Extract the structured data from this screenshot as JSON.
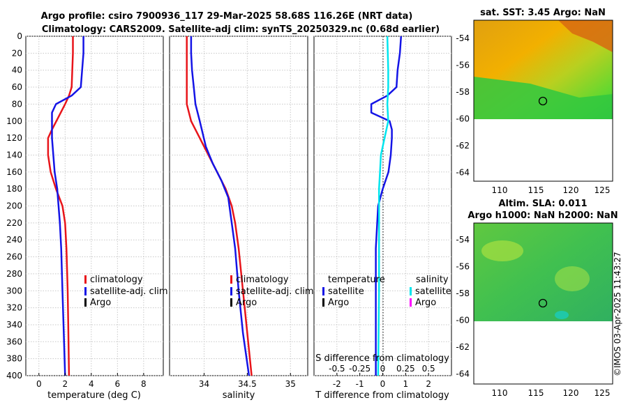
{
  "header": {
    "title_line1": "Argo profile: csiro 7900936_117 29-Mar-2025 58.68S 116.26E (NRT data)",
    "title_line2": "Climatology: CARS2009. Satellite-adj clim: synTS_20250329.nc (0.68d earlier)"
  },
  "colors": {
    "climatology": "#e8141a",
    "satellite": "#1414e6",
    "argo": "#000000",
    "sat_salinity": "#00e5ee",
    "argo_salinity": "#ff00ff"
  },
  "chart_data": [
    {
      "id": "temperature",
      "type": "line",
      "xlabel": "temperature (deg C)",
      "ylabel": "",
      "xlim": [
        -1,
        9.5
      ],
      "ylim": [
        400,
        0
      ],
      "xticks": [
        0,
        2,
        4,
        6,
        8
      ],
      "yticks": [
        0,
        20,
        40,
        60,
        80,
        100,
        120,
        140,
        160,
        180,
        200,
        220,
        240,
        260,
        280,
        300,
        320,
        340,
        360,
        380,
        400
      ],
      "series": [
        {
          "name": "climatology",
          "points": [
            [
              2.6,
              0
            ],
            [
              2.6,
              20
            ],
            [
              2.55,
              40
            ],
            [
              2.5,
              60
            ],
            [
              2.3,
              70
            ],
            [
              2.0,
              80
            ],
            [
              1.5,
              95
            ],
            [
              1.0,
              110
            ],
            [
              0.7,
              120
            ],
            [
              0.7,
              140
            ],
            [
              0.9,
              160
            ],
            [
              1.3,
              180
            ],
            [
              1.8,
              200
            ],
            [
              2.0,
              220
            ],
            [
              2.1,
              250
            ],
            [
              2.2,
              300
            ],
            [
              2.25,
              350
            ],
            [
              2.3,
              400
            ]
          ]
        },
        {
          "name": "satellite-adj. clim",
          "points": [
            [
              3.4,
              0
            ],
            [
              3.4,
              20
            ],
            [
              3.3,
              40
            ],
            [
              3.2,
              60
            ],
            [
              2.5,
              70
            ],
            [
              1.3,
              80
            ],
            [
              1.0,
              90
            ],
            [
              1.0,
              120
            ],
            [
              1.1,
              140
            ],
            [
              1.2,
              160
            ],
            [
              1.4,
              180
            ],
            [
              1.5,
              200
            ],
            [
              1.6,
              220
            ],
            [
              1.7,
              250
            ],
            [
              1.8,
              300
            ],
            [
              1.9,
              350
            ],
            [
              2.0,
              400
            ]
          ]
        }
      ],
      "legend": [
        "climatology",
        "satellite-adj. clim",
        "Argo"
      ]
    },
    {
      "id": "salinity",
      "type": "line",
      "xlabel": "salinity",
      "ylabel": "",
      "xlim": [
        33.6,
        35.2
      ],
      "ylim": [
        400,
        0
      ],
      "xticks": [
        34,
        34.5,
        35
      ],
      "xticklabels": [
        "34",
        "34.5",
        "35"
      ],
      "series": [
        {
          "name": "climatology",
          "points": [
            [
              33.8,
              0
            ],
            [
              33.8,
              20
            ],
            [
              33.8,
              40
            ],
            [
              33.8,
              60
            ],
            [
              33.8,
              80
            ],
            [
              33.85,
              100
            ],
            [
              33.95,
              120
            ],
            [
              34.05,
              140
            ],
            [
              34.15,
              160
            ],
            [
              34.25,
              180
            ],
            [
              34.32,
              200
            ],
            [
              34.36,
              220
            ],
            [
              34.4,
              250
            ],
            [
              34.45,
              300
            ],
            [
              34.5,
              350
            ],
            [
              34.55,
              400
            ]
          ]
        },
        {
          "name": "satellite-adj. clim",
          "points": [
            [
              33.85,
              0
            ],
            [
              33.85,
              20
            ],
            [
              33.86,
              40
            ],
            [
              33.88,
              60
            ],
            [
              33.9,
              80
            ],
            [
              33.95,
              100
            ],
            [
              34.02,
              130
            ],
            [
              34.1,
              150
            ],
            [
              34.2,
              170
            ],
            [
              34.28,
              190
            ],
            [
              34.32,
              220
            ],
            [
              34.36,
              250
            ],
            [
              34.4,
              300
            ],
            [
              34.45,
              350
            ],
            [
              34.52,
              400
            ]
          ]
        }
      ],
      "legend": [
        "climatology",
        "satellite-adj. clim",
        "Argo"
      ]
    },
    {
      "id": "difference",
      "type": "line",
      "xlabel": "T difference from climatology",
      "top_label": "S difference from climatology",
      "ylabel": "",
      "xlim": [
        -3,
        3
      ],
      "ylim": [
        400,
        0
      ],
      "xticks": [
        -2,
        -1,
        0,
        1,
        2
      ],
      "xticklabels": [
        "-2",
        "-1",
        "0",
        "1",
        "2"
      ],
      "sticks": [
        -0.5,
        -0.25,
        0,
        0.25,
        0.5
      ],
      "sticklabels": [
        "-0.5",
        "-0.25",
        "0",
        "0.25",
        "0.5"
      ],
      "series": [
        {
          "name": "temperature satellite",
          "points": [
            [
              0.8,
              0
            ],
            [
              0.75,
              20
            ],
            [
              0.65,
              40
            ],
            [
              0.6,
              60
            ],
            [
              0.2,
              70
            ],
            [
              -0.5,
              80
            ],
            [
              -0.5,
              90
            ],
            [
              0.3,
              100
            ],
            [
              0.4,
              110
            ],
            [
              0.4,
              120
            ],
            [
              0.35,
              140
            ],
            [
              0.25,
              160
            ],
            [
              0.0,
              180
            ],
            [
              -0.2,
              200
            ],
            [
              -0.3,
              250
            ],
            [
              -0.3,
              300
            ],
            [
              -0.3,
              350
            ],
            [
              -0.3,
              400
            ]
          ]
        },
        {
          "name": "salinity satellite",
          "points": [
            [
              0.05,
              0
            ],
            [
              0.06,
              40
            ],
            [
              0.06,
              60
            ],
            [
              0.05,
              80
            ],
            [
              0.06,
              100
            ],
            [
              0.02,
              120
            ],
            [
              -0.02,
              140
            ],
            [
              -0.03,
              160
            ],
            [
              -0.04,
              180
            ],
            [
              -0.04,
              220
            ],
            [
              -0.04,
              300
            ],
            [
              -0.05,
              400
            ]
          ]
        }
      ],
      "legend_temp_title": "temperature",
      "legend_sal_title": "salinity",
      "legend_temp": [
        "satellite",
        "Argo"
      ],
      "legend_sal": [
        "satellite",
        "Argo"
      ]
    }
  ],
  "maps": {
    "sst": {
      "title": "sat. SST: 3.45 Argo: NaN",
      "yticks": [
        "-54",
        "-56",
        "-58",
        "-60",
        "-62",
        "-64"
      ],
      "xticks": [
        "110",
        "115",
        "120",
        "125"
      ]
    },
    "sla": {
      "title_line1": "Altim. SLA: 0.011",
      "title_line2": "Argo h1000: NaN h2000: NaN",
      "yticks": [
        "-54",
        "-56",
        "-58",
        "-60",
        "-62",
        "-64"
      ],
      "xticks": [
        "110",
        "115",
        "120",
        "125"
      ]
    }
  },
  "watermark": "©IMOS 03-Apr-2025 11:43:27"
}
